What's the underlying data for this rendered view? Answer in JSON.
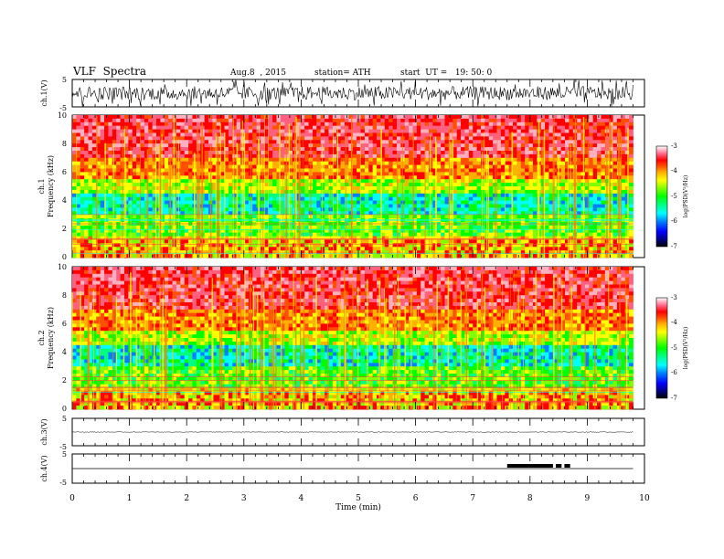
{
  "header": {
    "title": "VLF  Spectra",
    "date": "Aug.8  , 2015",
    "station": "station= ATH",
    "start": "start  UT =   19: 50: 0"
  },
  "colors": {
    "colormap": [
      "#000000",
      "#000080",
      "#0000ff",
      "#0080ff",
      "#00ffff",
      "#00ff80",
      "#00ff00",
      "#80ff00",
      "#ffff00",
      "#ffb000",
      "#ff5000",
      "#ff0000",
      "#ff6080",
      "#ffb0c0",
      "#ffffff"
    ]
  },
  "chart_data": [
    {
      "type": "line",
      "id": "ch1-waveform",
      "ylabel": "ch.1(V)",
      "yticks": [
        "5",
        "-5"
      ],
      "ylim": [
        -5,
        5
      ],
      "description_values": {
        "center": 0,
        "amplitude_typical": 2.5
      }
    },
    {
      "type": "heatmap",
      "id": "ch1-spectrogram",
      "ylabel_top": "ch.1",
      "ylabel": "Frequency  (kHz)",
      "yticks": [
        "0",
        "2",
        "4",
        "6",
        "8",
        "10"
      ],
      "ylim": [
        0,
        10
      ],
      "xlim": [
        0,
        9.8
      ],
      "colorbar": {
        "label": "log(PSD(V²/Hz)",
        "ticks": [
          "-3",
          "-4",
          "-5",
          "-6",
          "-7"
        ],
        "range": [
          -7,
          -3
        ]
      }
    },
    {
      "type": "heatmap",
      "id": "ch2-spectrogram",
      "ylabel_top": "ch.2",
      "ylabel": "Frequency  (kHz)",
      "yticks": [
        "0",
        "2",
        "4",
        "6",
        "8",
        "10"
      ],
      "ylim": [
        0,
        10
      ],
      "xlim": [
        0,
        9.8
      ],
      "colorbar": {
        "label": "log(PSD(V²/Hz)",
        "ticks": [
          "-3",
          "-4",
          "-5",
          "-6",
          "-7"
        ],
        "range": [
          -7,
          -3
        ]
      }
    },
    {
      "type": "line",
      "id": "ch3-waveform",
      "ylabel": "ch.3(V)",
      "yticks": [
        "5",
        "-5"
      ],
      "ylim": [
        -5,
        5
      ],
      "description_values": {
        "center": 0,
        "amplitude_typical": 0.1
      }
    },
    {
      "type": "line",
      "id": "ch4-waveform",
      "ylabel": "ch.4(V)",
      "yticks": [
        "5",
        "-5"
      ],
      "ylim": [
        -5,
        5
      ],
      "segments": [
        {
          "x_start": 7.6,
          "x_end": 8.4,
          "y": 0
        },
        {
          "x_start": 8.45,
          "x_end": 8.55,
          "y": 0
        },
        {
          "x_start": 8.6,
          "x_end": 8.7,
          "y": 0
        }
      ],
      "description_values": {
        "baseline": 0
      }
    }
  ],
  "x_axis": {
    "label": "Time  (min)",
    "ticks": [
      "0",
      "1",
      "2",
      "3",
      "4",
      "5",
      "6",
      "7",
      "8",
      "9",
      "10"
    ],
    "range": [
      0,
      10
    ],
    "data_end": 9.8
  }
}
